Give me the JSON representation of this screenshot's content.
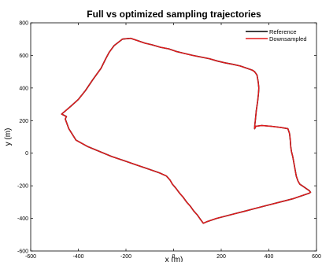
{
  "chart_data": {
    "type": "line",
    "title": "Full vs optimized sampling trajectories",
    "xlabel": "x (m)",
    "ylabel": "y (m)",
    "xlim": [
      -600,
      600
    ],
    "ylim": [
      -600,
      800
    ],
    "xticks": [
      -600,
      -400,
      -200,
      0,
      200,
      400,
      600
    ],
    "yticks": [
      -600,
      -400,
      -200,
      0,
      200,
      400,
      600,
      800
    ],
    "grid": false,
    "legend_position": "top-right",
    "series": [
      {
        "name": "Reference",
        "color": "#000000",
        "x": [
          -30,
          -60,
          -110,
          -160,
          -210,
          -260,
          -310,
          -360,
          -410,
          -440,
          -455,
          -450,
          -470,
          -450,
          -430,
          -400,
          -370,
          -340,
          -305,
          -285,
          -270,
          -250,
          -215,
          -180,
          -150,
          -120,
          -90,
          -55,
          -20,
          10,
          45,
          80,
          115,
          150,
          185,
          215,
          250,
          280,
          310,
          330,
          340,
          350,
          355,
          358,
          356,
          353,
          350,
          347,
          345,
          343,
          341,
          340,
          345,
          370,
          410,
          450,
          480,
          487,
          490,
          492,
          495,
          500,
          505,
          510,
          515,
          522,
          530,
          540,
          550,
          560,
          565,
          570,
          575,
          570,
          540,
          500,
          460,
          420,
          380,
          340,
          300,
          260,
          220,
          180,
          140,
          125,
          112,
          100,
          85,
          70,
          55,
          40,
          25,
          10,
          -5,
          -15,
          -30
        ],
        "y": [
          -140,
          -120,
          -95,
          -70,
          -45,
          -20,
          10,
          40,
          80,
          150,
          210,
          225,
          240,
          265,
          290,
          330,
          385,
          450,
          520,
          580,
          620,
          660,
          700,
          705,
          690,
          675,
          665,
          650,
          640,
          625,
          612,
          600,
          590,
          580,
          565,
          555,
          545,
          535,
          520,
          510,
          500,
          480,
          440,
          400,
          360,
          320,
          290,
          260,
          230,
          200,
          175,
          150,
          165,
          170,
          165,
          158,
          150,
          120,
          80,
          40,
          10,
          -20,
          -60,
          -100,
          -140,
          -170,
          -190,
          -200,
          -210,
          -220,
          -225,
          -230,
          -240,
          -245,
          -260,
          -280,
          -295,
          -310,
          -325,
          -340,
          -355,
          -370,
          -385,
          -400,
          -420,
          -430,
          -405,
          -380,
          -355,
          -325,
          -300,
          -270,
          -245,
          -215,
          -190,
          -165,
          -140
        ]
      },
      {
        "name": "Downsampled",
        "color": "#e41a1c",
        "x": [
          -30,
          -60,
          -110,
          -160,
          -210,
          -260,
          -310,
          -360,
          -410,
          -440,
          -455,
          -450,
          -470,
          -450,
          -430,
          -400,
          -370,
          -340,
          -305,
          -285,
          -270,
          -250,
          -215,
          -180,
          -150,
          -120,
          -90,
          -55,
          -20,
          10,
          45,
          80,
          115,
          150,
          185,
          215,
          250,
          280,
          310,
          330,
          340,
          350,
          355,
          358,
          356,
          353,
          350,
          347,
          345,
          343,
          341,
          340,
          345,
          370,
          410,
          450,
          480,
          487,
          490,
          492,
          495,
          500,
          505,
          510,
          515,
          522,
          530,
          540,
          550,
          560,
          565,
          570,
          575,
          570,
          540,
          500,
          460,
          420,
          380,
          340,
          300,
          260,
          220,
          180,
          140,
          125,
          112,
          100,
          85,
          70,
          55,
          40,
          25,
          10,
          -5,
          -15,
          -30
        ],
        "y": [
          -140,
          -120,
          -95,
          -70,
          -45,
          -20,
          10,
          40,
          80,
          150,
          210,
          225,
          240,
          265,
          290,
          330,
          385,
          450,
          520,
          580,
          620,
          660,
          700,
          705,
          690,
          675,
          665,
          650,
          640,
          625,
          612,
          600,
          590,
          580,
          565,
          555,
          545,
          535,
          520,
          510,
          500,
          480,
          440,
          400,
          360,
          320,
          290,
          260,
          230,
          200,
          175,
          150,
          165,
          170,
          165,
          158,
          150,
          120,
          80,
          40,
          10,
          -20,
          -60,
          -100,
          -140,
          -170,
          -190,
          -200,
          -210,
          -220,
          -225,
          -230,
          -240,
          -245,
          -260,
          -280,
          -295,
          -310,
          -325,
          -340,
          -355,
          -370,
          -385,
          -400,
          -420,
          -430,
          -405,
          -380,
          -355,
          -325,
          -300,
          -270,
          -245,
          -215,
          -190,
          -165,
          -140
        ]
      }
    ]
  }
}
